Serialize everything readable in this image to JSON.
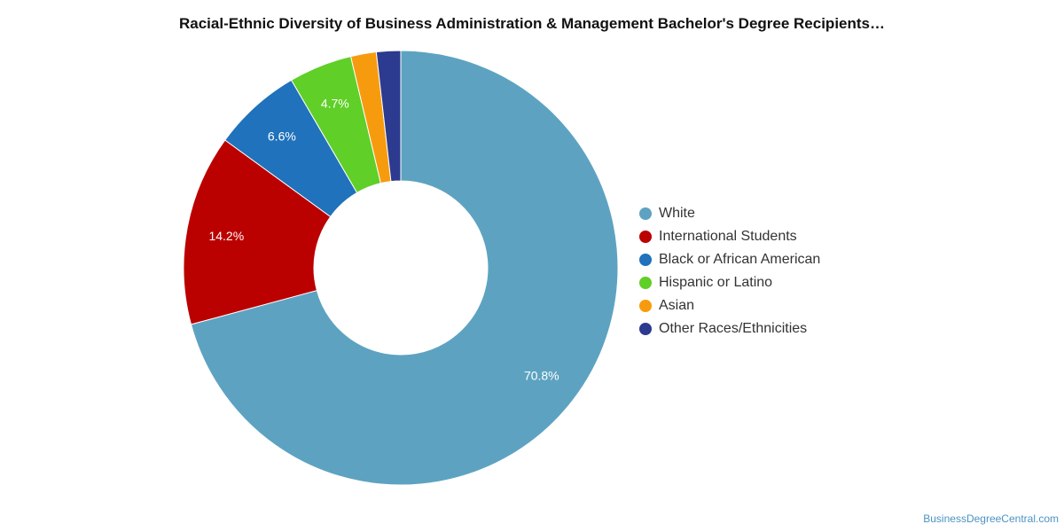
{
  "chart_data": {
    "type": "pie",
    "title": "Racial-Ethnic Diversity of Business Administration & Management Bachelor's Degree Recipients…",
    "legend_position": "right",
    "series": [
      {
        "name": "White",
        "value": 70.8,
        "label": "70.8%",
        "color": "#5da3c1"
      },
      {
        "name": "International Students",
        "value": 14.2,
        "label": "14.2%",
        "color": "#bb0000"
      },
      {
        "name": "Black or African American",
        "value": 6.6,
        "label": "6.6%",
        "color": "#1f72bb"
      },
      {
        "name": "Hispanic or Latino",
        "value": 4.7,
        "label": "4.7%",
        "color": "#60cf28"
      },
      {
        "name": "Asian",
        "value": 1.9,
        "label": "",
        "color": "#f79b0e"
      },
      {
        "name": "Other Races/Ethnicities",
        "value": 1.8,
        "label": "",
        "color": "#2c3a8f"
      }
    ]
  },
  "credit": "BusinessDegreeCentral.com"
}
